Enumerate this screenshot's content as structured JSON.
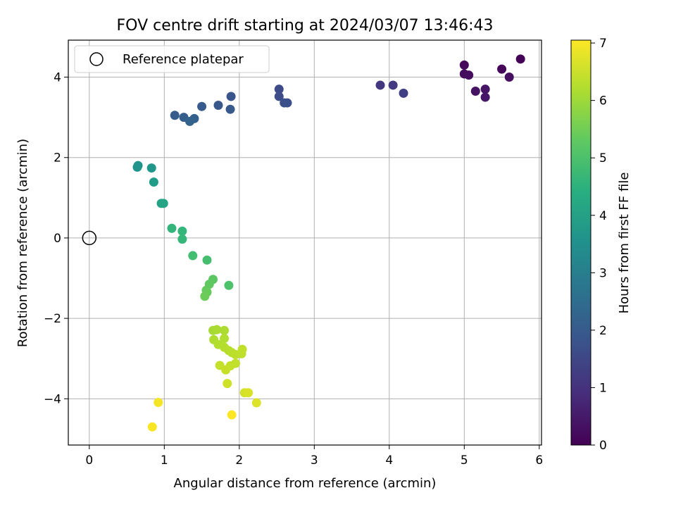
{
  "chart_data": {
    "type": "scatter",
    "title": "FOV centre drift starting at 2024/03/07 13:46:43",
    "xlabel": "Angular distance from reference (arcmin)",
    "ylabel": "Rotation from reference (arcmin)",
    "xlim": [
      -0.28,
      6.03
    ],
    "ylim": [
      -5.15,
      4.92
    ],
    "x_ticks": [
      0,
      1,
      2,
      3,
      4,
      5,
      6
    ],
    "x_tick_labels": [
      "0",
      "1",
      "2",
      "3",
      "4",
      "5",
      "6"
    ],
    "y_ticks": [
      -4,
      -2,
      0,
      2,
      4
    ],
    "y_tick_labels": [
      "−4",
      "−2",
      "0",
      "2",
      "4"
    ],
    "grid": true,
    "legend": {
      "position": "top-left",
      "entries": [
        {
          "label": "Reference platepar",
          "marker": "open-circle",
          "x": 0,
          "y": 0
        }
      ]
    },
    "colorbar": {
      "label": "Hours from first FF file",
      "min": 0,
      "max": 7.05,
      "ticks": [
        0,
        1,
        2,
        3,
        4,
        5,
        6,
        7
      ],
      "tick_labels": [
        "0",
        "1",
        "2",
        "3",
        "4",
        "5",
        "6",
        "7"
      ],
      "colormap": "viridis"
    },
    "points": [
      {
        "x": 5.75,
        "y": 4.45,
        "h": 0.05
      },
      {
        "x": 5.0,
        "y": 4.3,
        "h": 0.15
      },
      {
        "x": 5.5,
        "y": 4.2,
        "h": 0.1
      },
      {
        "x": 5.0,
        "y": 4.08,
        "h": 0.2
      },
      {
        "x": 5.06,
        "y": 4.05,
        "h": 0.25
      },
      {
        "x": 5.6,
        "y": 4.0,
        "h": 0.3
      },
      {
        "x": 5.15,
        "y": 3.65,
        "h": 0.35
      },
      {
        "x": 5.28,
        "y": 3.7,
        "h": 0.4
      },
      {
        "x": 5.28,
        "y": 3.5,
        "h": 0.45
      },
      {
        "x": 3.88,
        "y": 3.8,
        "h": 1.15
      },
      {
        "x": 4.05,
        "y": 3.8,
        "h": 1.2
      },
      {
        "x": 4.19,
        "y": 3.6,
        "h": 1.3
      },
      {
        "x": 2.53,
        "y": 3.7,
        "h": 1.6
      },
      {
        "x": 2.53,
        "y": 3.52,
        "h": 1.65
      },
      {
        "x": 2.6,
        "y": 3.36,
        "h": 1.7
      },
      {
        "x": 2.64,
        "y": 3.36,
        "h": 1.72
      },
      {
        "x": 1.89,
        "y": 3.52,
        "h": 1.85
      },
      {
        "x": 1.72,
        "y": 3.3,
        "h": 1.9
      },
      {
        "x": 1.88,
        "y": 3.2,
        "h": 1.95
      },
      {
        "x": 1.5,
        "y": 3.27,
        "h": 2.0
      },
      {
        "x": 1.14,
        "y": 3.05,
        "h": 2.05
      },
      {
        "x": 1.26,
        "y": 3.0,
        "h": 2.1
      },
      {
        "x": 1.4,
        "y": 2.97,
        "h": 2.15
      },
      {
        "x": 1.34,
        "y": 2.9,
        "h": 2.2
      },
      {
        "x": 0.65,
        "y": 1.8,
        "h": 3.6
      },
      {
        "x": 0.64,
        "y": 1.76,
        "h": 3.65
      },
      {
        "x": 0.83,
        "y": 1.74,
        "h": 3.7
      },
      {
        "x": 0.86,
        "y": 1.39,
        "h": 3.85
      },
      {
        "x": 0.96,
        "y": 0.86,
        "h": 4.05
      },
      {
        "x": 0.99,
        "y": 0.86,
        "h": 4.1
      },
      {
        "x": 1.1,
        "y": 0.24,
        "h": 4.6
      },
      {
        "x": 1.24,
        "y": 0.17,
        "h": 4.65
      },
      {
        "x": 1.24,
        "y": -0.03,
        "h": 4.7
      },
      {
        "x": 1.38,
        "y": -0.44,
        "h": 4.9
      },
      {
        "x": 1.57,
        "y": -0.55,
        "h": 4.95
      },
      {
        "x": 1.86,
        "y": -1.18,
        "h": 5.05
      },
      {
        "x": 1.65,
        "y": -1.03,
        "h": 5.25
      },
      {
        "x": 1.6,
        "y": -1.15,
        "h": 5.3
      },
      {
        "x": 1.56,
        "y": -1.3,
        "h": 5.35
      },
      {
        "x": 1.57,
        "y": -1.35,
        "h": 5.4
      },
      {
        "x": 1.54,
        "y": -1.45,
        "h": 5.45
      },
      {
        "x": 1.65,
        "y": -2.3,
        "h": 6.1
      },
      {
        "x": 1.7,
        "y": -2.28,
        "h": 6.15
      },
      {
        "x": 1.8,
        "y": -2.3,
        "h": 6.18
      },
      {
        "x": 1.66,
        "y": -2.53,
        "h": 6.2
      },
      {
        "x": 1.8,
        "y": -2.5,
        "h": 6.22
      },
      {
        "x": 1.72,
        "y": -2.65,
        "h": 6.25
      },
      {
        "x": 1.8,
        "y": -2.72,
        "h": 6.28
      },
      {
        "x": 1.86,
        "y": -2.8,
        "h": 6.3
      },
      {
        "x": 1.9,
        "y": -2.85,
        "h": 6.32
      },
      {
        "x": 1.95,
        "y": -2.9,
        "h": 6.35
      },
      {
        "x": 2.03,
        "y": -2.88,
        "h": 6.37
      },
      {
        "x": 2.04,
        "y": -2.77,
        "h": 6.38
      },
      {
        "x": 1.95,
        "y": -3.12,
        "h": 6.4
      },
      {
        "x": 1.88,
        "y": -3.18,
        "h": 6.42
      },
      {
        "x": 1.74,
        "y": -3.17,
        "h": 6.44
      },
      {
        "x": 1.82,
        "y": -3.28,
        "h": 6.46
      },
      {
        "x": 1.84,
        "y": -3.62,
        "h": 6.55
      },
      {
        "x": 2.07,
        "y": -3.85,
        "h": 6.6
      },
      {
        "x": 2.12,
        "y": -3.85,
        "h": 6.65
      },
      {
        "x": 2.23,
        "y": -4.1,
        "h": 6.7
      },
      {
        "x": 0.92,
        "y": -4.09,
        "h": 6.95
      },
      {
        "x": 0.84,
        "y": -4.7,
        "h": 7.0
      },
      {
        "x": 1.9,
        "y": -4.4,
        "h": 7.05
      }
    ]
  }
}
